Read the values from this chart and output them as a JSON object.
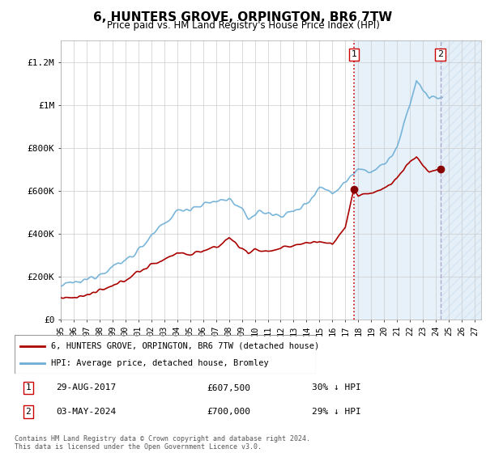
{
  "title": "6, HUNTERS GROVE, ORPINGTON, BR6 7TW",
  "subtitle": "Price paid vs. HM Land Registry's House Price Index (HPI)",
  "xlim_start": 1995.0,
  "xlim_end": 2027.5,
  "ylim": [
    0,
    1300000
  ],
  "yticks": [
    0,
    200000,
    400000,
    600000,
    800000,
    1000000,
    1200000
  ],
  "ytick_labels": [
    "£0",
    "£200K",
    "£400K",
    "£600K",
    "£800K",
    "£1M",
    "£1.2M"
  ],
  "xticks": [
    1995,
    1996,
    1997,
    1998,
    1999,
    2000,
    2001,
    2002,
    2003,
    2004,
    2005,
    2006,
    2007,
    2008,
    2009,
    2010,
    2011,
    2012,
    2013,
    2014,
    2015,
    2016,
    2017,
    2018,
    2019,
    2020,
    2021,
    2022,
    2023,
    2024,
    2025,
    2026,
    2027
  ],
  "hpi_color": "#6baed6",
  "price_color": "#aa0000",
  "transaction1_x": 2017.66,
  "transaction1_y": 607500,
  "transaction1_label": "1",
  "transaction2_x": 2024.34,
  "transaction2_y": 700000,
  "transaction2_label": "2",
  "vline1_color": "#cc0000",
  "vline1_style": "dotted",
  "vline2_color": "#aaaacc",
  "vline2_style": "dashed",
  "shade_color": "#d0e4f5",
  "shade_alpha": 0.5,
  "hatch_color": "#c0d8ee",
  "hatch_alpha": 0.4,
  "legend_label_price": "6, HUNTERS GROVE, ORPINGTON, BR6 7TW (detached house)",
  "legend_label_hpi": "HPI: Average price, detached house, Bromley",
  "annotation1_date": "29-AUG-2017",
  "annotation1_price": "£607,500",
  "annotation1_hpi": "30% ↓ HPI",
  "annotation2_date": "03-MAY-2024",
  "annotation2_price": "£700,000",
  "annotation2_hpi": "29% ↓ HPI",
  "footer": "Contains HM Land Registry data © Crown copyright and database right 2024.\nThis data is licensed under the Open Government Licence v3.0.",
  "background_color": "#ffffff",
  "grid_color": "#cccccc"
}
